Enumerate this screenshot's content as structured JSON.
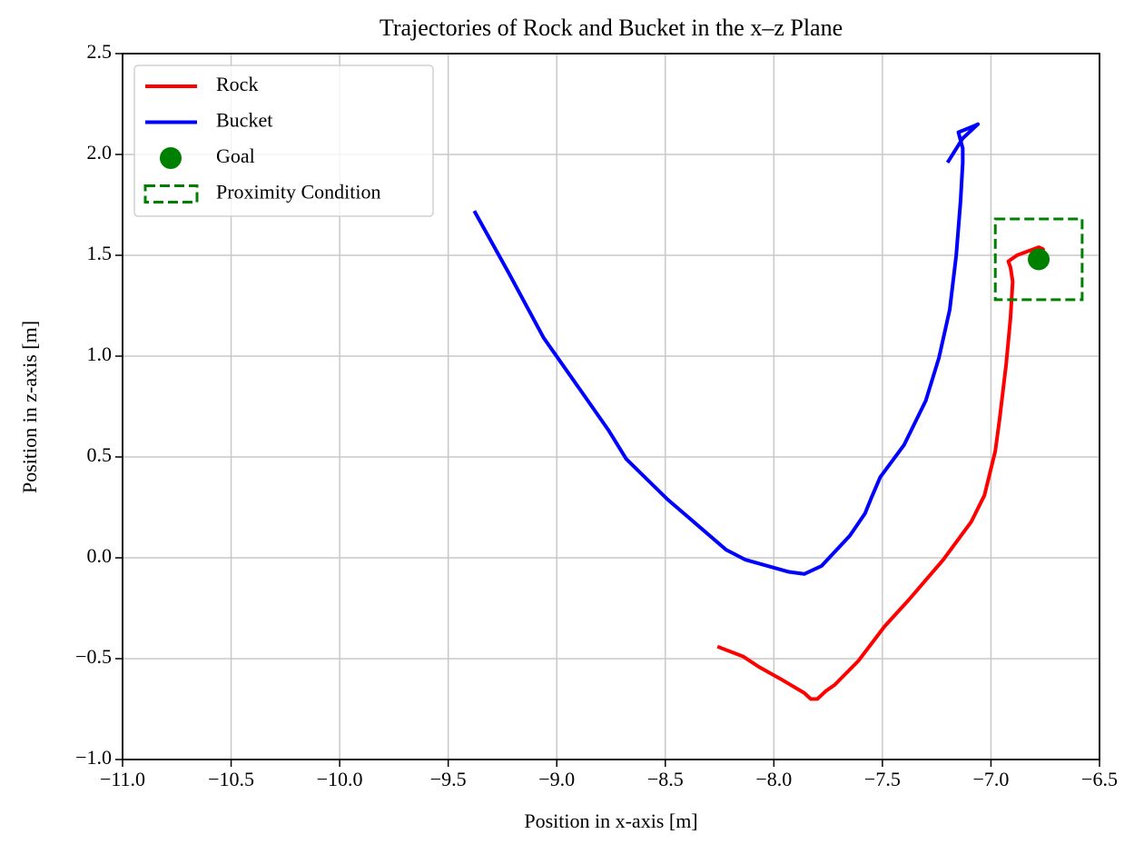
{
  "chart_data": {
    "type": "line",
    "title": "Trajectories of Rock and Bucket in the x–z Plane",
    "x_label": "Position in x-axis [m]",
    "y_label": "Position in z-axis [m]",
    "xlim": [
      -11,
      -6.5
    ],
    "ylim": [
      -1,
      2.5
    ],
    "xticks": [
      {
        "value": -11,
        "label": "−11.0"
      },
      {
        "value": -10.5,
        "label": "−10.5"
      },
      {
        "value": -10,
        "label": "−10.0"
      },
      {
        "value": -9.5,
        "label": "−9.5"
      },
      {
        "value": -9,
        "label": "−9.0"
      },
      {
        "value": -8.5,
        "label": "−8.5"
      },
      {
        "value": -8,
        "label": "−8.0"
      },
      {
        "value": -7.5,
        "label": "−7.5"
      },
      {
        "value": -7,
        "label": "−7.0"
      },
      {
        "value": -6.5,
        "label": "−6.5"
      }
    ],
    "yticks": [
      {
        "value": -1,
        "label": "−1.0"
      },
      {
        "value": -0.5,
        "label": "−0.5"
      },
      {
        "value": 0,
        "label": "0.0"
      },
      {
        "value": 0.5,
        "label": "0.5"
      },
      {
        "value": 1,
        "label": "1.0"
      },
      {
        "value": 1.5,
        "label": "1.5"
      },
      {
        "value": 2,
        "label": "2.0"
      },
      {
        "value": 2.5,
        "label": "2.5"
      }
    ],
    "grid": true,
    "legend": "upper-left",
    "series": [
      {
        "name": "Rock",
        "color": "#ff0000",
        "x": [
          -8.26,
          -8.14,
          -8.07,
          -7.97,
          -7.86,
          -7.83,
          -7.8,
          -7.76,
          -7.72,
          -7.61,
          -7.49,
          -7.38,
          -7.34,
          -7.22,
          -7.09,
          -7.03,
          -6.98,
          -6.96,
          -6.93,
          -6.91,
          -6.9,
          -6.91,
          -6.92,
          -6.88,
          -6.78,
          -6.76,
          -6.79
        ],
        "values": [
          -0.44,
          -0.49,
          -0.54,
          -0.6,
          -0.67,
          -0.7,
          -0.7,
          -0.66,
          -0.63,
          -0.51,
          -0.34,
          -0.21,
          -0.16,
          -0.01,
          0.18,
          0.31,
          0.53,
          0.69,
          0.96,
          1.19,
          1.37,
          1.44,
          1.47,
          1.5,
          1.54,
          1.53,
          1.43
        ]
      },
      {
        "name": "Bucket",
        "color": "#0000ff",
        "x": [
          -9.38,
          -9.22,
          -9.06,
          -8.89,
          -8.76,
          -8.68,
          -8.49,
          -8.22,
          -8.13,
          -7.93,
          -7.86,
          -7.78,
          -7.65,
          -7.58,
          -7.55,
          -7.51,
          -7.4,
          -7.3,
          -7.24,
          -7.19,
          -7.16,
          -7.14,
          -7.13,
          -7.13,
          -7.15,
          -7.08,
          -7.06,
          -7.13,
          -7.2
        ],
        "values": [
          1.72,
          1.41,
          1.09,
          0.83,
          0.63,
          0.49,
          0.29,
          0.04,
          -0.01,
          -0.07,
          -0.08,
          -0.04,
          0.11,
          0.22,
          0.3,
          0.4,
          0.56,
          0.78,
          0.99,
          1.23,
          1.5,
          1.77,
          1.96,
          2.03,
          2.11,
          2.14,
          2.15,
          2.08,
          1.96
        ]
      }
    ],
    "goal": {
      "name": "Goal",
      "color": "#008000",
      "x": -6.78,
      "value": 1.48
    },
    "proximity": {
      "name": "Proximity Condition",
      "color": "#008000",
      "x0": -6.98,
      "x1": -6.58,
      "y0": 1.28,
      "y1": 1.68
    }
  }
}
